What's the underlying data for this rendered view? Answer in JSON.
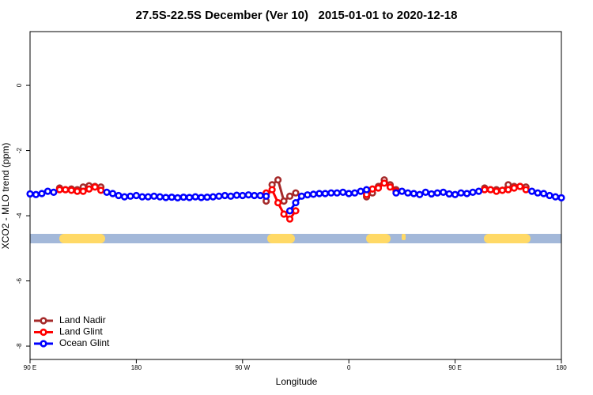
{
  "chart_data": {
    "type": "line",
    "title": "27.5S-22.5S December (Ver 10)   2015-01-01 to 2020-12-18",
    "x_label": "Longitude",
    "y_label": "XCO2 - MLO trend (ppm)",
    "xlim": [
      90,
      540
    ],
    "ylim": [
      -8.41,
      1.65
    ],
    "xticks": [
      {
        "value": 90,
        "label": "90 E"
      },
      {
        "value": 180,
        "label": "180"
      },
      {
        "value": 270,
        "label": "90 W"
      },
      {
        "value": 360,
        "label": "0"
      },
      {
        "value": 450,
        "label": "90 E"
      },
      {
        "value": 540,
        "label": "180"
      }
    ],
    "yticks": [
      0,
      -2,
      -4,
      -6,
      -8
    ],
    "grid": false,
    "legend": "bottom-left",
    "x": [
      90,
      95,
      100,
      105,
      110,
      115,
      120,
      125,
      130,
      135,
      140,
      145,
      150,
      155,
      160,
      165,
      170,
      175,
      180,
      185,
      190,
      195,
      200,
      205,
      210,
      215,
      220,
      225,
      230,
      235,
      240,
      245,
      250,
      255,
      260,
      265,
      270,
      275,
      280,
      285,
      290,
      295,
      300,
      305,
      310,
      315,
      320,
      325,
      330,
      335,
      340,
      345,
      350,
      355,
      360,
      365,
      370,
      375,
      380,
      385,
      390,
      395,
      400,
      405,
      410,
      415,
      420,
      425,
      430,
      435,
      440,
      445,
      450,
      455,
      460,
      465,
      470,
      475,
      480,
      485,
      490,
      495,
      500,
      505,
      510,
      515,
      520,
      525,
      530,
      535,
      540
    ],
    "series": [
      {
        "name": "Land Nadir",
        "color": "#a52a2a",
        "values": [
          null,
          null,
          null,
          null,
          null,
          -3.15,
          -3.2,
          -3.18,
          -3.2,
          -3.12,
          -3.08,
          -3.1,
          -3.12,
          null,
          null,
          null,
          null,
          null,
          null,
          null,
          null,
          null,
          null,
          null,
          null,
          null,
          null,
          null,
          null,
          null,
          null,
          null,
          null,
          null,
          null,
          null,
          null,
          null,
          null,
          null,
          -3.55,
          -3.05,
          -2.9,
          -3.55,
          -3.4,
          -3.3,
          null,
          null,
          null,
          null,
          null,
          null,
          null,
          null,
          null,
          null,
          null,
          -3.42,
          -3.3,
          -3.1,
          -2.9,
          -3.05,
          -3.2,
          null,
          null,
          null,
          null,
          null,
          null,
          null,
          null,
          null,
          null,
          null,
          null,
          null,
          null,
          -3.15,
          -3.2,
          -3.2,
          -3.22,
          -3.05,
          -3.1,
          -3.1,
          -3.12,
          null,
          null,
          null,
          null,
          null,
          null
        ]
      },
      {
        "name": "Land Glint",
        "color": "#ff0000",
        "values": [
          null,
          null,
          null,
          null,
          null,
          -3.2,
          -3.2,
          -3.22,
          -3.25,
          -3.25,
          -3.18,
          -3.12,
          -3.22,
          null,
          null,
          null,
          null,
          null,
          null,
          null,
          null,
          null,
          null,
          null,
          null,
          null,
          null,
          null,
          null,
          null,
          null,
          null,
          null,
          null,
          null,
          null,
          null,
          null,
          null,
          null,
          -3.3,
          -3.2,
          -3.6,
          -3.95,
          -4.1,
          -3.85,
          null,
          null,
          null,
          null,
          null,
          null,
          null,
          null,
          null,
          null,
          null,
          -3.35,
          -3.18,
          -3.15,
          -3.0,
          -3.12,
          -3.25,
          null,
          null,
          null,
          null,
          null,
          null,
          null,
          null,
          null,
          null,
          null,
          null,
          null,
          null,
          -3.2,
          -3.2,
          -3.25,
          -3.22,
          -3.2,
          -3.15,
          -3.1,
          -3.2,
          null,
          null,
          null,
          null,
          null,
          null
        ]
      },
      {
        "name": "Ocean Glint",
        "color": "#0000ff",
        "values": [
          -3.33,
          -3.35,
          -3.32,
          -3.25,
          -3.28,
          null,
          null,
          null,
          null,
          null,
          null,
          null,
          null,
          -3.28,
          -3.32,
          -3.38,
          -3.42,
          -3.4,
          -3.38,
          -3.42,
          -3.42,
          -3.4,
          -3.42,
          -3.44,
          -3.43,
          -3.45,
          -3.43,
          -3.44,
          -3.42,
          -3.44,
          -3.43,
          -3.42,
          -3.4,
          -3.38,
          -3.4,
          -3.37,
          -3.38,
          -3.36,
          -3.38,
          -3.38,
          -3.4,
          null,
          null,
          null,
          -3.85,
          -3.6,
          -3.4,
          -3.36,
          -3.34,
          -3.32,
          -3.32,
          -3.3,
          -3.3,
          -3.28,
          -3.32,
          -3.3,
          -3.25,
          -3.2,
          null,
          null,
          null,
          null,
          -3.3,
          -3.25,
          -3.3,
          -3.32,
          -3.35,
          -3.28,
          -3.33,
          -3.3,
          -3.28,
          -3.33,
          -3.35,
          -3.3,
          -3.32,
          -3.28,
          -3.25,
          null,
          null,
          null,
          null,
          null,
          null,
          null,
          null,
          -3.25,
          -3.3,
          -3.32,
          -3.38,
          -3.42,
          -3.45
        ]
      }
    ]
  }
}
